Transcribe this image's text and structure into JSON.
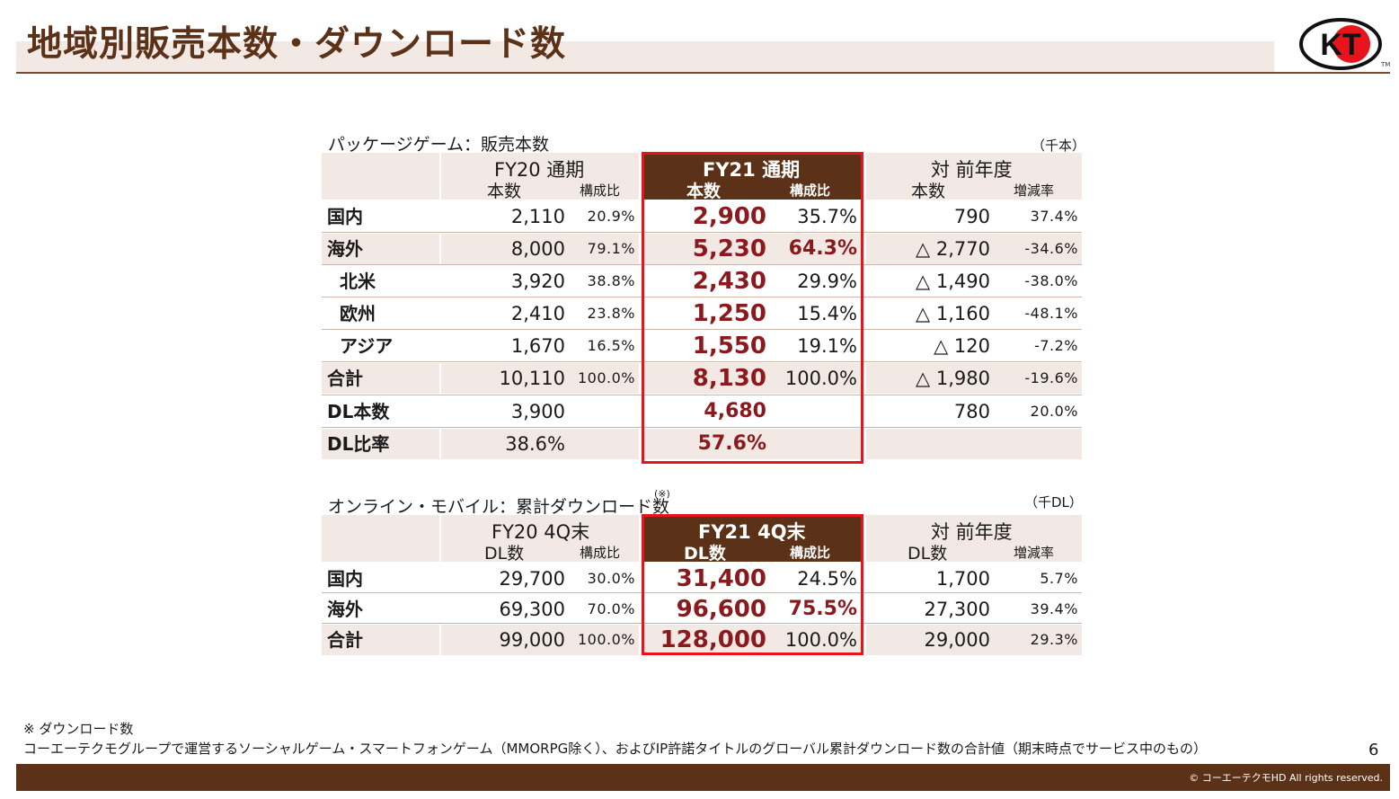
{
  "slide_title": "地域別販売本数・ダウンロード数",
  "logo_text": "KT",
  "logo_tm": "TM",
  "package": {
    "title": "パッケージゲーム：販売本数",
    "unit": "（千本）",
    "headers": {
      "fy20": "FY20 通期",
      "fy21": "FY21 通期",
      "yoy": "対 前年度",
      "units": "本数",
      "share": "構成比",
      "change": "増減率"
    },
    "rows": [
      {
        "label": "国内",
        "fy20": "2,110",
        "fy20_pct": "20.9%",
        "fy21": "2,900",
        "fy21_pct": "35.7%",
        "yoy": "790",
        "yoy_pct": "37.4%"
      },
      {
        "label": "海外",
        "fy20": "8,000",
        "fy20_pct": "79.1%",
        "fy21": "5,230",
        "fy21_pct": "64.3%",
        "yoy": "△ 2,770",
        "yoy_pct": "-34.6%"
      },
      {
        "label": "北米",
        "fy20": "3,920",
        "fy20_pct": "38.8%",
        "fy21": "2,430",
        "fy21_pct": "29.9%",
        "yoy": "△ 1,490",
        "yoy_pct": "-38.0%"
      },
      {
        "label": "欧州",
        "fy20": "2,410",
        "fy20_pct": "23.8%",
        "fy21": "1,250",
        "fy21_pct": "15.4%",
        "yoy": "△ 1,160",
        "yoy_pct": "-48.1%"
      },
      {
        "label": "アジア",
        "fy20": "1,670",
        "fy20_pct": "16.5%",
        "fy21": "1,550",
        "fy21_pct": "19.1%",
        "yoy": "△ 120",
        "yoy_pct": "-7.2%"
      },
      {
        "label": "合計",
        "fy20": "10,110",
        "fy20_pct": "100.0%",
        "fy21": "8,130",
        "fy21_pct": "100.0%",
        "yoy": "△ 1,980",
        "yoy_pct": "-19.6%"
      },
      {
        "label": "DL本数",
        "fy20": "3,900",
        "fy20_pct": "",
        "fy21": "4,680",
        "fy21_pct": "",
        "yoy": "780",
        "yoy_pct": "20.0%"
      },
      {
        "label": "DL比率",
        "fy20": "38.6%",
        "fy20_pct": "",
        "fy21": "57.6%",
        "fy21_pct": "",
        "yoy": "",
        "yoy_pct": ""
      }
    ]
  },
  "online": {
    "title": "オンライン・モバイル：累計ダウンロード数",
    "note_mark": "(※)",
    "unit": "（千DL）",
    "headers": {
      "fy20": "FY20 4Q末",
      "fy21": "FY21 4Q末",
      "yoy": "対 前年度",
      "units": "DL数",
      "share": "構成比",
      "change": "増減率"
    },
    "rows": [
      {
        "label": "国内",
        "fy20": "29,700",
        "fy20_pct": "30.0%",
        "fy21": "31,400",
        "fy21_pct": "24.5%",
        "yoy": "1,700",
        "yoy_pct": "5.7%"
      },
      {
        "label": "海外",
        "fy20": "69,300",
        "fy20_pct": "70.0%",
        "fy21": "96,600",
        "fy21_pct": "75.5%",
        "yoy": "27,300",
        "yoy_pct": "39.4%"
      },
      {
        "label": "合計",
        "fy20": "99,000",
        "fy20_pct": "100.0%",
        "fy21": "128,000",
        "fy21_pct": "100.0%",
        "yoy": "29,000",
        "yoy_pct": "29.3%"
      }
    ]
  },
  "footnote": {
    "heading": "※ ダウンロード数",
    "text": "コーエーテクモグループで運営するソーシャルゲーム・スマートフォンゲーム（MMORPG除く）、およびIP許諾タイトルのグローバル累計ダウンロード数の合計値（期末時点でサービス中のもの）"
  },
  "page_number": "6",
  "copyright": "© コーエーテクモHD All rights reserved.",
  "colors": {
    "brand_brown": "#5b3218",
    "shade": "#f3e9e4",
    "highlight_red": "#e8141c",
    "value_red": "#8b1a1e"
  }
}
